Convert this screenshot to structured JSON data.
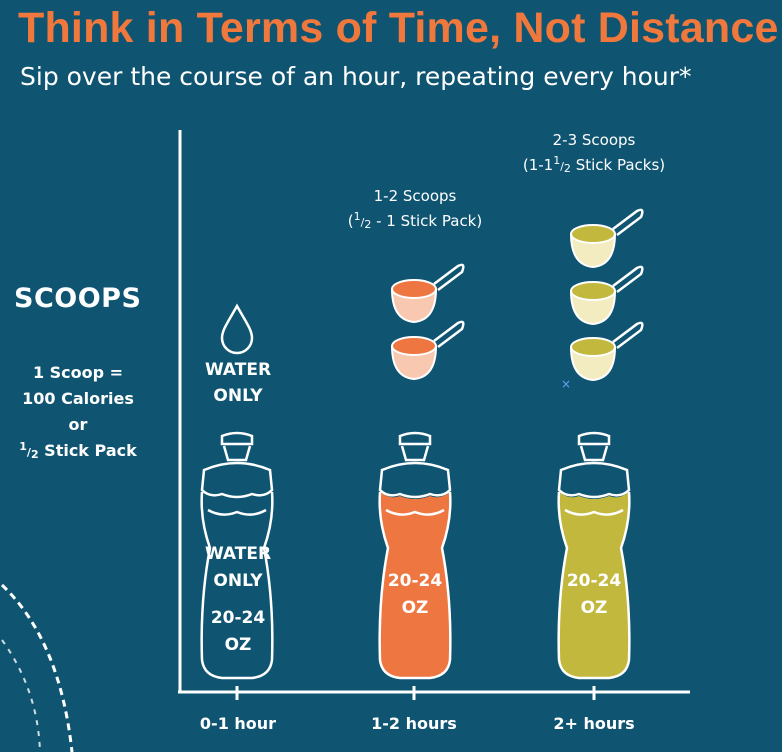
{
  "header": {
    "title": "Think in Terms of Time, Not Distance",
    "subtitle": "Sip over the course of an hour, repeating every hour*"
  },
  "sidebar": {
    "heading": "SCOOPS",
    "line1": "1 Scoop =",
    "line2": "100 Calories",
    "line3": "or",
    "line4_num": "1",
    "line4_den": "2",
    "line4_text": " Stick Pack"
  },
  "columns": [
    {
      "x_label": "0-1 hour",
      "above_line1": "WATER",
      "above_line2": "ONLY",
      "bottle_line1": "WATER",
      "bottle_line2": "ONLY",
      "bottle_line3": "20-24",
      "bottle_line4": "OZ",
      "icon": "water-drop-icon",
      "fill_color": "#0f5572"
    },
    {
      "x_label": "1-2 hours",
      "scoop_line1": "1-2 Scoops",
      "scoop_line2_pre": "(",
      "scoop_line2_num": "1",
      "scoop_line2_den": "2",
      "scoop_line2_post": " - 1 Stick Pack)",
      "bottle_line1": "20-24",
      "bottle_line2": "OZ",
      "scoops": 2,
      "icon": "scoop-icon",
      "fill_color": "#ee7640"
    },
    {
      "x_label": "2+ hours",
      "scoop_line1": "2-3 Scoops",
      "scoop_line2_pre": "(1-1",
      "scoop_line2_num": "1",
      "scoop_line2_den": "2",
      "scoop_line2_post": " Stick Packs)",
      "bottle_line1": "20-24",
      "bottle_line2": "OZ",
      "scoops": 3,
      "icon": "scoop-icon",
      "fill_color": "#c3b83e"
    }
  ],
  "colors": {
    "background": "#0f5572",
    "title": "#f0783c",
    "orange": "#ee7640",
    "yellow_green": "#c3b83e",
    "outline": "#ffffff"
  }
}
